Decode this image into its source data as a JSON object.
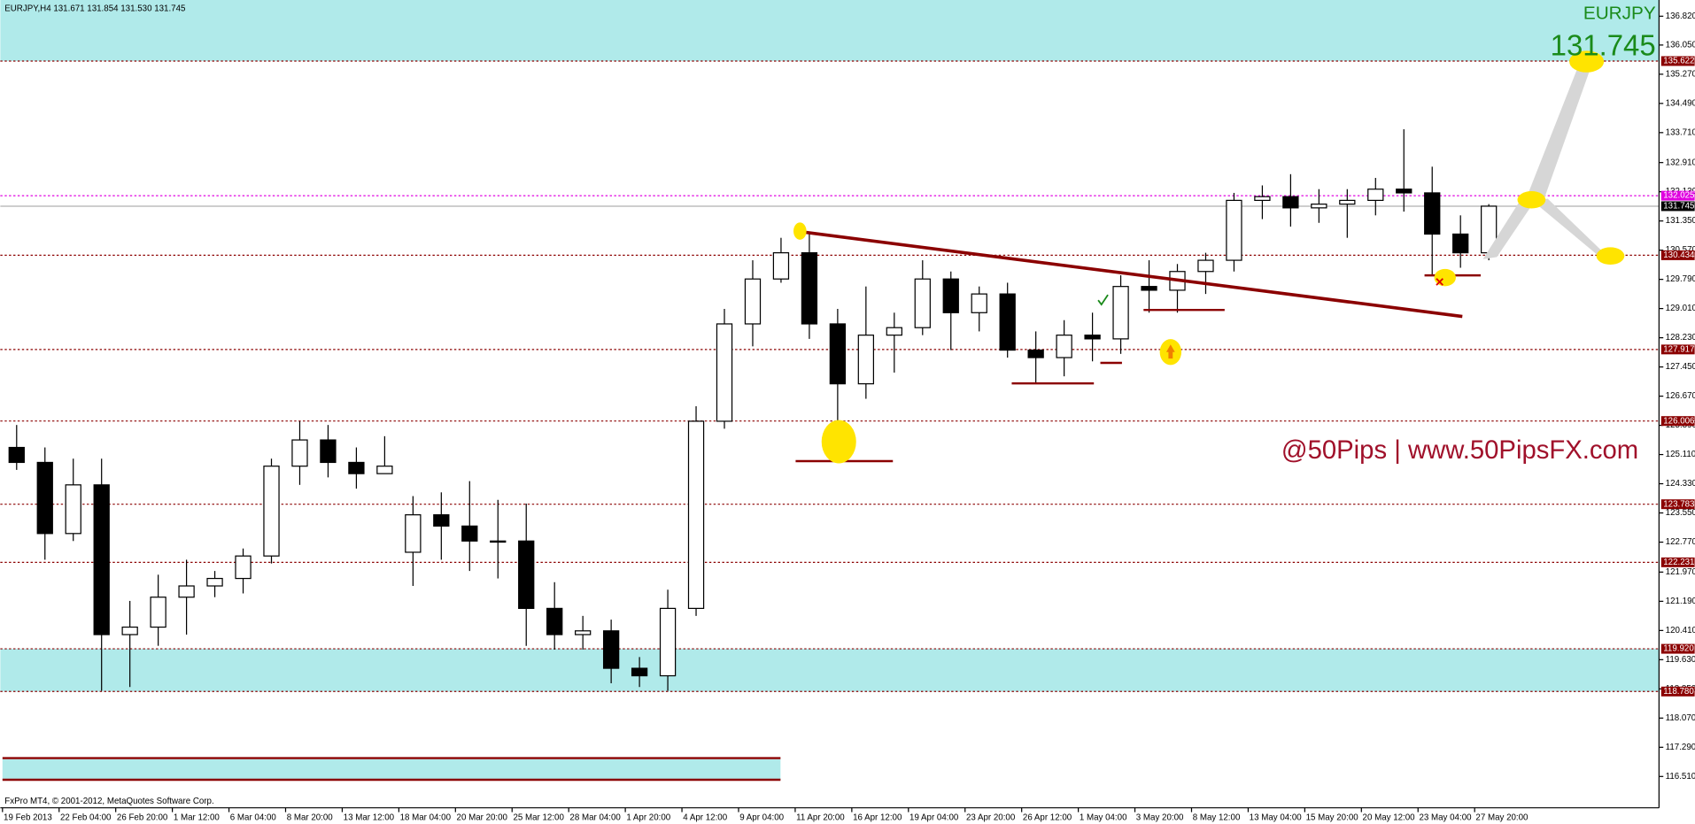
{
  "chart_data": {
    "type": "candlestick",
    "header": "EURJPY,H4  131.671 131.854 131.530 131.745",
    "symbol": "EURJPY",
    "price_label": "131.745",
    "watermark": "@50Pips | www.50PipsFX.com",
    "copyright": "FxPro MT4, © 2001-2012, MetaQuotes Software Corp.",
    "ylim": [
      115.673,
      137.253
    ],
    "yticks": [
      {
        "value": 136.82,
        "label": "136.820"
      },
      {
        "value": 136.05,
        "label": "136.050"
      },
      {
        "value": 135.27,
        "label": "135.270"
      },
      {
        "value": 134.49,
        "label": "134.490"
      },
      {
        "value": 133.71,
        "label": "133.710"
      },
      {
        "value": 132.91,
        "label": "132.910"
      },
      {
        "value": 132.13,
        "label": "132.130"
      },
      {
        "value": 131.35,
        "label": "131.350"
      },
      {
        "value": 130.57,
        "label": "130.570"
      },
      {
        "value": 129.79,
        "label": "129.790"
      },
      {
        "value": 129.01,
        "label": "129.010"
      },
      {
        "value": 128.23,
        "label": "128.230"
      },
      {
        "value": 127.45,
        "label": "127.450"
      },
      {
        "value": 126.67,
        "label": "126.670"
      },
      {
        "value": 125.89,
        "label": "125.890"
      },
      {
        "value": 125.11,
        "label": "125.110"
      },
      {
        "value": 124.33,
        "label": "124.330"
      },
      {
        "value": 123.55,
        "label": "123.550"
      },
      {
        "value": 122.77,
        "label": "122.770"
      },
      {
        "value": 121.97,
        "label": "121.970"
      },
      {
        "value": 121.19,
        "label": "121.190"
      },
      {
        "value": 120.41,
        "label": "120.410"
      },
      {
        "value": 119.63,
        "label": "119.630"
      },
      {
        "value": 118.85,
        "label": "118.850"
      },
      {
        "value": 118.07,
        "label": "118.070"
      },
      {
        "value": 117.29,
        "label": "117.290"
      },
      {
        "value": 116.51,
        "label": "116.510"
      }
    ],
    "xlim": [
      -0.038,
      29.256
    ],
    "xticks": [
      {
        "value": 0,
        "label": "19 Feb 2013"
      },
      {
        "value": 1,
        "label": "22 Feb 04:00"
      },
      {
        "value": 2,
        "label": "26 Feb 20:00"
      },
      {
        "value": 3,
        "label": "1 Mar 12:00"
      },
      {
        "value": 4,
        "label": "6 Mar 04:00"
      },
      {
        "value": 5,
        "label": "8 Mar 20:00"
      },
      {
        "value": 6,
        "label": "13 Mar 12:00"
      },
      {
        "value": 7,
        "label": "18 Mar 04:00"
      },
      {
        "value": 8,
        "label": "20 Mar 20:00"
      },
      {
        "value": 9,
        "label": "25 Mar 12:00"
      },
      {
        "value": 10,
        "label": "28 Mar 04:00"
      },
      {
        "value": 11,
        "label": "1 Apr 20:00"
      },
      {
        "value": 12,
        "label": "4 Apr 12:00"
      },
      {
        "value": 13,
        "label": "9 Apr 04:00"
      },
      {
        "value": 14,
        "label": "11 Apr 20:00"
      },
      {
        "value": 15,
        "label": "16 Apr 12:00"
      },
      {
        "value": 16,
        "label": "19 Apr 04:00"
      },
      {
        "value": 17,
        "label": "23 Apr 20:00"
      },
      {
        "value": 18,
        "label": "26 Apr 12:00"
      },
      {
        "value": 19,
        "label": "1 May 04:00"
      },
      {
        "value": 20,
        "label": "3 May 20:00"
      },
      {
        "value": 21,
        "label": "8 May 12:00"
      },
      {
        "value": 22,
        "label": "13 May 04:00"
      },
      {
        "value": 23,
        "label": "15 May 20:00"
      },
      {
        "value": 24,
        "label": "20 May 12:00"
      },
      {
        "value": 25,
        "label": "23 May 04:00"
      },
      {
        "value": 26,
        "label": "27 May 20:00"
      }
    ],
    "zones": [
      [
        135.622,
        137.253
      ],
      [
        118.78,
        119.92
      ]
    ],
    "zone_color": "#b0eaea",
    "levels": [
      {
        "value": 135.622,
        "color": "#8b0000"
      },
      {
        "value": 132.025,
        "color": "#e000e0"
      },
      {
        "value": 131.745,
        "color": "#000000"
      },
      {
        "value": 130.434,
        "color": "#8b0000"
      },
      {
        "value": 127.917,
        "color": "#8b0000"
      },
      {
        "value": 126.006,
        "color": "#8b0000"
      },
      {
        "value": 123.783,
        "color": "#8b0000"
      },
      {
        "value": 122.231,
        "color": "#8b0000"
      },
      {
        "value": 119.92,
        "label": "119.920",
        "color": "#8b0000"
      },
      {
        "value": 118.78,
        "label": "118.780",
        "color": "#8b0000"
      }
    ],
    "candles": {
      "x": [
        0.25,
        0.75,
        1.25,
        1.75,
        2.25,
        2.75,
        3.25,
        3.75,
        4.25,
        4.75,
        5.25,
        5.75,
        6.25,
        6.75,
        7.25,
        7.75,
        8.25,
        8.75,
        9.25,
        9.75,
        10.25,
        10.75,
        11.25,
        11.75,
        12.25,
        12.75,
        13.25,
        13.75,
        14.25,
        14.75,
        15.25,
        15.75,
        16.25,
        16.75,
        17.25,
        17.75,
        18.25,
        18.75,
        19.25,
        19.75,
        20.25,
        20.75,
        21.25,
        21.75,
        22.25,
        22.75,
        23.25,
        23.75,
        24.25,
        24.75,
        25.25,
        25.75,
        26.25
      ],
      "open": [
        125.3,
        124.9,
        123.0,
        124.3,
        120.3,
        120.5,
        121.3,
        121.6,
        121.8,
        122.4,
        124.8,
        125.5,
        124.9,
        124.6,
        122.5,
        123.5,
        123.2,
        122.8,
        122.8,
        121.0,
        120.3,
        120.4,
        119.4,
        119.2,
        121.0,
        126.0,
        128.6,
        129.8,
        130.5,
        128.6,
        127.0,
        128.3,
        128.5,
        129.8,
        128.9,
        129.4,
        127.9,
        127.7,
        128.3,
        128.2,
        129.6,
        129.5,
        130.0,
        130.3,
        131.9,
        132.0,
        131.7,
        131.8,
        131.9,
        132.2,
        132.1,
        131.0,
        130.5
      ],
      "high": [
        125.9,
        125.3,
        125.0,
        125.0,
        121.2,
        121.9,
        122.3,
        122.0,
        122.6,
        125.0,
        126.0,
        125.9,
        125.3,
        125.6,
        124.0,
        124.1,
        124.4,
        123.9,
        123.8,
        121.7,
        120.8,
        120.7,
        119.7,
        121.5,
        126.4,
        129.0,
        130.3,
        130.9,
        131.0,
        129.0,
        129.6,
        128.9,
        130.3,
        130.0,
        129.6,
        129.7,
        128.4,
        128.7,
        128.9,
        129.9,
        130.3,
        130.2,
        130.5,
        132.1,
        132.3,
        132.6,
        132.2,
        132.2,
        132.5,
        133.8,
        132.8,
        131.5,
        131.8
      ],
      "low": [
        124.7,
        122.3,
        122.8,
        118.8,
        118.9,
        120.0,
        120.3,
        121.3,
        121.4,
        122.2,
        124.3,
        124.5,
        124.2,
        124.6,
        121.6,
        122.3,
        122.0,
        121.8,
        120.0,
        119.9,
        119.9,
        119.0,
        118.9,
        118.8,
        120.8,
        125.8,
        128.0,
        129.7,
        128.2,
        125.0,
        126.6,
        127.3,
        128.3,
        127.9,
        128.4,
        127.7,
        127.0,
        127.2,
        127.6,
        127.8,
        128.9,
        128.9,
        129.4,
        130.0,
        131.4,
        131.2,
        131.3,
        130.9,
        131.5,
        131.6,
        129.9,
        130.1,
        130.3
      ],
      "close": [
        124.9,
        123.0,
        124.3,
        120.3,
        120.5,
        121.3,
        121.6,
        121.8,
        122.4,
        124.8,
        125.5,
        124.9,
        124.6,
        124.8,
        123.5,
        123.2,
        122.8,
        122.8,
        121.0,
        120.3,
        120.4,
        119.4,
        119.2,
        121.0,
        126.0,
        128.6,
        129.8,
        130.5,
        128.6,
        127.0,
        128.3,
        128.5,
        129.8,
        128.9,
        129.4,
        127.9,
        127.7,
        128.3,
        128.2,
        129.6,
        129.5,
        130.0,
        130.3,
        131.9,
        132.0,
        131.7,
        131.8,
        131.9,
        132.2,
        132.1,
        131.0,
        130.5,
        131.745
      ]
    }
  }
}
